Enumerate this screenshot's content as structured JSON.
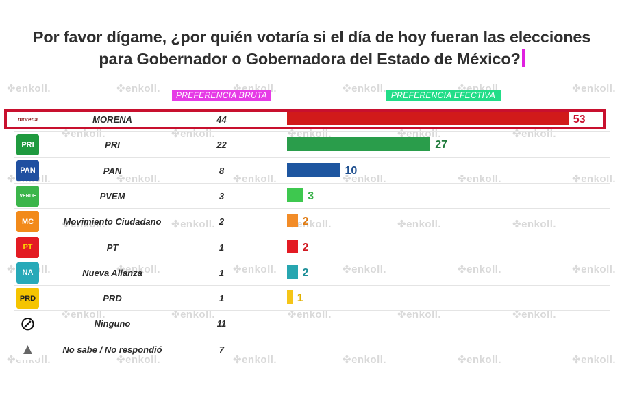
{
  "title": "Por favor dígame, ¿por quién votaría si el día de hoy fueran las elecciones para Gobernador o Gobernadora del Estado de México?",
  "watermark_text": "enkoll.",
  "headers": {
    "bruta": "PREFERENCIA BRUTA",
    "efectiva": "PREFERENCIA EFECTIVA"
  },
  "highlight_party": "MORENA",
  "chart_data": {
    "type": "bar",
    "orientation": "horizontal",
    "title": "Por favor dígame, ¿por quién votaría si el día de hoy fueran las elecciones para Gobernador o Gobernadora del Estado de México?",
    "categories": [
      "MORENA",
      "PRI",
      "PAN",
      "PVEM",
      "Movimiento Ciudadano",
      "PT",
      "Nueva Alianza",
      "PRD",
      "Ninguno",
      "No sabe / No respondió"
    ],
    "series": [
      {
        "name": "PREFERENCIA BRUTA",
        "values": [
          44,
          22,
          8,
          3,
          2,
          1,
          1,
          1,
          11,
          7
        ]
      },
      {
        "name": "PREFERENCIA EFECTIVA",
        "values": [
          53,
          27,
          10,
          3,
          2,
          2,
          2,
          1,
          null,
          null
        ]
      }
    ],
    "xlim": [
      0,
      60
    ]
  },
  "rows": [
    {
      "party": "MORENA",
      "logo_text": "morena",
      "logo_icon": "morena-logo-icon",
      "logo_bg": "#ffffff",
      "logo_fg": "#8b1a1a",
      "raw": "44",
      "eff": 53,
      "eff_label": "53",
      "bar_color": "#d11a1a",
      "label_color": "#c8102e"
    },
    {
      "party": "PRI",
      "logo_text": "PRI",
      "logo_icon": "pri-logo-icon",
      "logo_bg": "#1f9a3e",
      "logo_fg": "#ffffff",
      "raw": "22",
      "eff": 27,
      "eff_label": "27",
      "bar_color": "#2a9d4b",
      "label_color": "#1f7a3a"
    },
    {
      "party": "PAN",
      "logo_text": "PAN",
      "logo_icon": "pan-logo-icon",
      "logo_bg": "#1f4fa0",
      "logo_fg": "#ffffff",
      "raw": "8",
      "eff": 10,
      "eff_label": "10",
      "bar_color": "#1e56a0",
      "label_color": "#1e4f8f"
    },
    {
      "party": "PVEM",
      "logo_text": "VERDE",
      "logo_icon": "pvem-logo-icon",
      "logo_bg": "#3bb54a",
      "logo_fg": "#ffffff",
      "raw": "3",
      "eff": 3,
      "eff_label": "3",
      "bar_color": "#3ec84f",
      "label_color": "#37b047"
    },
    {
      "party": "Movimiento Ciudadano",
      "logo_text": "MC",
      "logo_icon": "mc-logo-icon",
      "logo_bg": "#f28a1a",
      "logo_fg": "#ffffff",
      "raw": "2",
      "eff": 2,
      "eff_label": "2",
      "bar_color": "#f28c28",
      "label_color": "#e07a10"
    },
    {
      "party": "PT",
      "logo_text": "PT",
      "logo_icon": "pt-logo-icon",
      "logo_bg": "#e31b23",
      "logo_fg": "#ffdd00",
      "raw": "1",
      "eff": 2,
      "eff_label": "2",
      "bar_color": "#e31b23",
      "label_color": "#d01820"
    },
    {
      "party": "Nueva Alianza",
      "logo_text": "NA",
      "logo_icon": "nueva-alianza-logo-icon",
      "logo_bg": "#27a9b8",
      "logo_fg": "#ffffff",
      "raw": "1",
      "eff": 2,
      "eff_label": "2",
      "bar_color": "#27a6b0",
      "label_color": "#1d8f99"
    },
    {
      "party": "PRD",
      "logo_text": "PRD",
      "logo_icon": "prd-logo-icon",
      "logo_bg": "#f5c400",
      "logo_fg": "#222222",
      "raw": "1",
      "eff": 1,
      "eff_label": "1",
      "bar_color": "#f5c518",
      "label_color": "#e0b000"
    },
    {
      "party": "Ninguno",
      "logo_text": "⊘",
      "logo_icon": "ninguno-icon",
      "logo_bg": "#ffffff",
      "logo_fg": "#111111",
      "raw": "11",
      "eff": null,
      "eff_label": "",
      "bar_color": "#ffffff",
      "label_color": "#222222"
    },
    {
      "party": "No sabe / No respondió",
      "logo_text": "▲",
      "logo_icon": "warning-triangle-icon",
      "logo_bg": "#ffffff",
      "logo_fg": "#666666",
      "raw": "7",
      "eff": null,
      "eff_label": "",
      "bar_color": "#ffffff",
      "label_color": "#222222"
    }
  ]
}
